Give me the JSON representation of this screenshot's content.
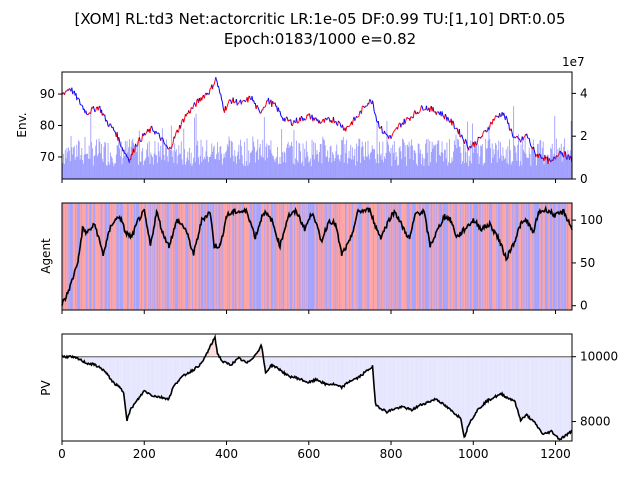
{
  "chart_data": {
    "type": "line",
    "title_line1": "[XOM] RL:td3 Net:actorcritic LR:1e-05 DF:0.99 TU:[1,10] DRT:0.05",
    "title_line2": "Epoch:0183/1000 e=0.82",
    "x_ticks": [
      "0",
      "200",
      "400",
      "600",
      "800",
      "1000",
      "1200"
    ],
    "xlim": [
      0,
      1240
    ],
    "panels": [
      {
        "id": "env",
        "ylabel": "Env.",
        "ylim": [
          63,
          97
        ],
        "left_ticks": [
          70,
          80,
          90
        ],
        "right_ticks": [
          0,
          2,
          4
        ],
        "right_ylim": [
          0,
          5
        ],
        "right_offset_label": "1e7",
        "price_line_color": "#0000ff",
        "price_up_color": "#ff0000",
        "volume_color": "#8080ff",
        "price_keypoints": [
          [
            0,
            90
          ],
          [
            20,
            92
          ],
          [
            40,
            88
          ],
          [
            60,
            84
          ],
          [
            90,
            86
          ],
          [
            110,
            81
          ],
          [
            130,
            78
          ],
          [
            150,
            72
          ],
          [
            165,
            69
          ],
          [
            180,
            74
          ],
          [
            200,
            77
          ],
          [
            220,
            79
          ],
          [
            240,
            76
          ],
          [
            260,
            72
          ],
          [
            280,
            78
          ],
          [
            300,
            83
          ],
          [
            320,
            86
          ],
          [
            340,
            89
          ],
          [
            360,
            91
          ],
          [
            375,
            95
          ],
          [
            380,
            92
          ],
          [
            395,
            85
          ],
          [
            410,
            88
          ],
          [
            440,
            87
          ],
          [
            460,
            89
          ],
          [
            480,
            84
          ],
          [
            500,
            88
          ],
          [
            520,
            86
          ],
          [
            540,
            82
          ],
          [
            560,
            81
          ],
          [
            600,
            83
          ],
          [
            630,
            81
          ],
          [
            660,
            82
          ],
          [
            690,
            79
          ],
          [
            720,
            83
          ],
          [
            740,
            87
          ],
          [
            755,
            88
          ],
          [
            765,
            82
          ],
          [
            780,
            78
          ],
          [
            800,
            76
          ],
          [
            820,
            80
          ],
          [
            840,
            82
          ],
          [
            860,
            84
          ],
          [
            880,
            86
          ],
          [
            900,
            85
          ],
          [
            920,
            84
          ],
          [
            940,
            82
          ],
          [
            960,
            79
          ],
          [
            975,
            76
          ],
          [
            990,
            73
          ],
          [
            1010,
            75
          ],
          [
            1030,
            78
          ],
          [
            1050,
            82
          ],
          [
            1070,
            84
          ],
          [
            1080,
            82
          ],
          [
            1100,
            76
          ],
          [
            1115,
            75
          ],
          [
            1130,
            77
          ],
          [
            1150,
            71
          ],
          [
            1170,
            70
          ],
          [
            1190,
            68
          ],
          [
            1210,
            72
          ],
          [
            1240,
            69
          ]
        ]
      },
      {
        "id": "agent",
        "ylabel": "Agent",
        "ylim": [
          -5,
          120
        ],
        "right_ticks": [
          0,
          50,
          100
        ],
        "line_color": "#000000",
        "background_colors": [
          "#ff9a9a",
          "#9a9aff"
        ],
        "line_keypoints": [
          [
            0,
            2
          ],
          [
            10,
            10
          ],
          [
            25,
            30
          ],
          [
            40,
            55
          ],
          [
            50,
            90
          ],
          [
            60,
            85
          ],
          [
            80,
            95
          ],
          [
            100,
            60
          ],
          [
            120,
            95
          ],
          [
            140,
            105
          ],
          [
            155,
            85
          ],
          [
            170,
            80
          ],
          [
            185,
            100
          ],
          [
            200,
            110
          ],
          [
            215,
            70
          ],
          [
            230,
            110
          ],
          [
            245,
            85
          ],
          [
            260,
            70
          ],
          [
            280,
            100
          ],
          [
            300,
            90
          ],
          [
            320,
            60
          ],
          [
            340,
            100
          ],
          [
            360,
            110
          ],
          [
            370,
            70
          ],
          [
            385,
            70
          ],
          [
            400,
            105
          ],
          [
            420,
            110
          ],
          [
            450,
            110
          ],
          [
            470,
            80
          ],
          [
            490,
            110
          ],
          [
            510,
            100
          ],
          [
            530,
            70
          ],
          [
            550,
            105
          ],
          [
            570,
            110
          ],
          [
            590,
            90
          ],
          [
            610,
            110
          ],
          [
            630,
            75
          ],
          [
            650,
            100
          ],
          [
            665,
            95
          ],
          [
            680,
            60
          ],
          [
            700,
            75
          ],
          [
            720,
            110
          ],
          [
            750,
            112
          ],
          [
            760,
            95
          ],
          [
            775,
            80
          ],
          [
            800,
            105
          ],
          [
            810,
            110
          ],
          [
            830,
            90
          ],
          [
            845,
            78
          ],
          [
            860,
            108
          ],
          [
            880,
            110
          ],
          [
            895,
            70
          ],
          [
            915,
            90
          ],
          [
            930,
            105
          ],
          [
            945,
            100
          ],
          [
            960,
            80
          ],
          [
            980,
            90
          ],
          [
            1000,
            100
          ],
          [
            1020,
            90
          ],
          [
            1040,
            95
          ],
          [
            1060,
            80
          ],
          [
            1080,
            55
          ],
          [
            1100,
            75
          ],
          [
            1115,
            95
          ],
          [
            1130,
            100
          ],
          [
            1145,
            85
          ],
          [
            1160,
            110
          ],
          [
            1180,
            112
          ],
          [
            1200,
            105
          ],
          [
            1220,
            110
          ],
          [
            1240,
            90
          ]
        ]
      },
      {
        "id": "pv",
        "ylabel": "PV",
        "ylim": [
          7400,
          10700
        ],
        "right_ticks": [
          8000,
          10000
        ],
        "baseline": 10000,
        "baseline_color": "#808080",
        "line_color": "#000000",
        "fill_below_color": "#e4e4ff",
        "fill_above_color": "#ffdcdc",
        "line_keypoints": [
          [
            0,
            10000
          ],
          [
            20,
            10000
          ],
          [
            40,
            9930
          ],
          [
            60,
            9800
          ],
          [
            80,
            9750
          ],
          [
            100,
            9600
          ],
          [
            110,
            9450
          ],
          [
            125,
            9200
          ],
          [
            140,
            9050
          ],
          [
            150,
            8900
          ],
          [
            158,
            8050
          ],
          [
            168,
            8400
          ],
          [
            180,
            8600
          ],
          [
            200,
            8950
          ],
          [
            220,
            8800
          ],
          [
            240,
            8750
          ],
          [
            260,
            8700
          ],
          [
            270,
            9050
          ],
          [
            285,
            9300
          ],
          [
            300,
            9450
          ],
          [
            320,
            9600
          ],
          [
            340,
            9800
          ],
          [
            360,
            10300
          ],
          [
            372,
            10600
          ],
          [
            378,
            10100
          ],
          [
            390,
            9850
          ],
          [
            410,
            9750
          ],
          [
            430,
            9950
          ],
          [
            450,
            9800
          ],
          [
            470,
            10050
          ],
          [
            485,
            10350
          ],
          [
            495,
            9500
          ],
          [
            510,
            9750
          ],
          [
            530,
            9600
          ],
          [
            550,
            9400
          ],
          [
            570,
            9350
          ],
          [
            600,
            9200
          ],
          [
            620,
            9300
          ],
          [
            640,
            9150
          ],
          [
            660,
            9150
          ],
          [
            680,
            9050
          ],
          [
            700,
            9250
          ],
          [
            720,
            9350
          ],
          [
            740,
            9550
          ],
          [
            755,
            9700
          ],
          [
            762,
            8550
          ],
          [
            770,
            8450
          ],
          [
            790,
            8300
          ],
          [
            810,
            8400
          ],
          [
            830,
            8450
          ],
          [
            850,
            8350
          ],
          [
            870,
            8500
          ],
          [
            890,
            8600
          ],
          [
            910,
            8700
          ],
          [
            930,
            8500
          ],
          [
            950,
            8300
          ],
          [
            970,
            8100
          ],
          [
            978,
            7500
          ],
          [
            990,
            7950
          ],
          [
            1010,
            8350
          ],
          [
            1030,
            8600
          ],
          [
            1050,
            8750
          ],
          [
            1070,
            8850
          ],
          [
            1080,
            8750
          ],
          [
            1100,
            8650
          ],
          [
            1115,
            8050
          ],
          [
            1130,
            8200
          ],
          [
            1150,
            7950
          ],
          [
            1170,
            7600
          ],
          [
            1190,
            7700
          ],
          [
            1210,
            7450
          ],
          [
            1240,
            7700
          ]
        ]
      }
    ]
  }
}
